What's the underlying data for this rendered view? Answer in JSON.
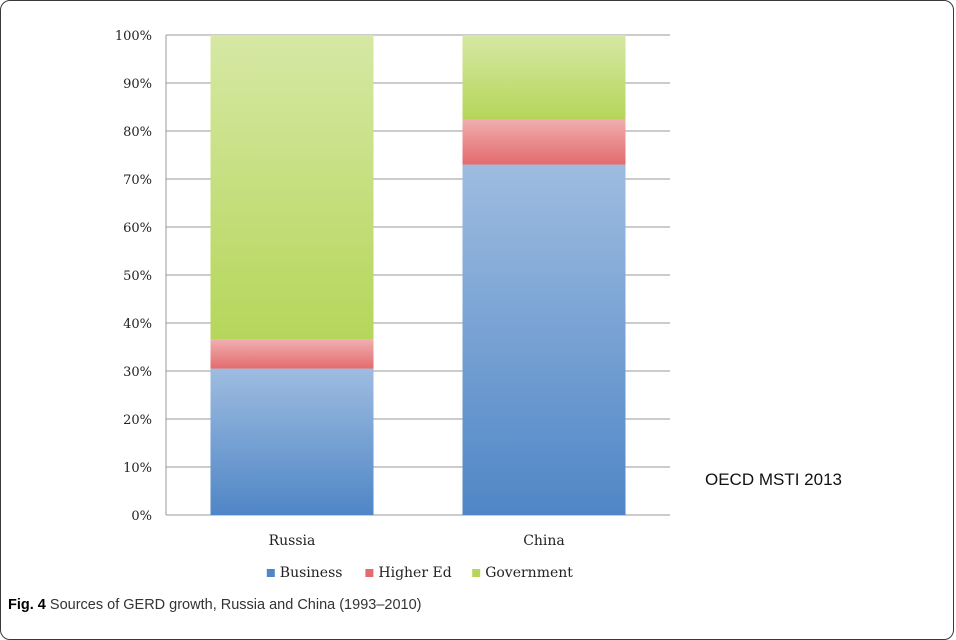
{
  "chart_data": {
    "type": "bar",
    "stacked": true,
    "categories": [
      "Russia",
      "China"
    ],
    "series": [
      {
        "name": "Business",
        "values": [
          30.5,
          73
        ],
        "color": "#4f86c6"
      },
      {
        "name": "Higher Ed",
        "values": [
          6,
          9.5
        ],
        "color": "#e36b6e"
      },
      {
        "name": "Government",
        "values": [
          63.5,
          17.5
        ],
        "color": "#b5d65a"
      }
    ],
    "ylim": [
      0,
      100
    ],
    "yticks": [
      "0%",
      "10%",
      "20%",
      "30%",
      "40%",
      "50%",
      "60%",
      "70%",
      "80%",
      "90%",
      "100%"
    ],
    "grid": true,
    "legend_position": "bottom",
    "source_note": "OECD MSTI 2013"
  },
  "caption": {
    "label": "Fig. 4",
    "text": " Sources of GERD growth, Russia and China (1993–2010)"
  }
}
